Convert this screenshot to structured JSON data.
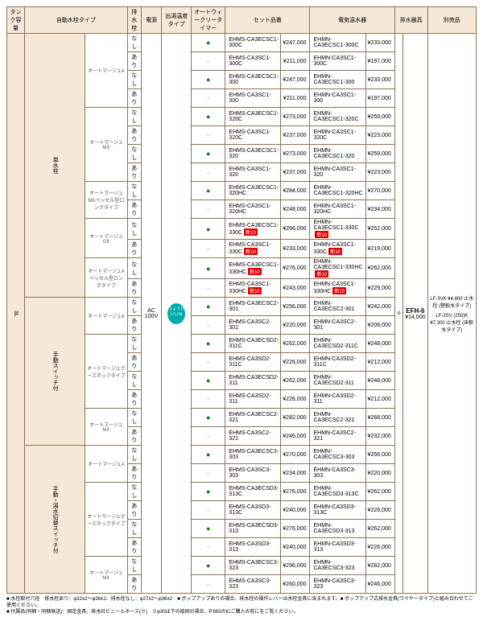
{
  "headers": {
    "c0": "タンク容量",
    "c1": "自動水栓タイプ",
    "c2": "排水栓",
    "c3": "電源",
    "c4": "出湯温度タイプ",
    "c5": "オートウィークリータイマー",
    "c6": "セット品番",
    "c7": "電気温水器",
    "c8": "排水器具",
    "c9": "別売品"
  },
  "left": {
    "cap": "3L",
    "ac": "AC\n100V",
    "chip": "ちょうどいいね",
    "g1": "単水栓",
    "g2": "手動スイッチ付",
    "g3": "手動・湯水切替スイッチ付",
    "t1": "オートマージュA",
    "t2": "オートマージュMX",
    "t3": "オートマージュMXベッセル型ロングタイプ",
    "t4": "オートマージュGX",
    "t5": "オートマージュAベッセル型ロングタイプ",
    "t6": "オートマージュA",
    "t7": "オートマージュグースネックタイプ",
    "t8": "オートマージュMX",
    "t9": "オートマージュA",
    "t10": "オートマージュグースネックタイプ",
    "t11": "オートマージュMX",
    "nashi": "なし",
    "ari": "あり"
  },
  "rows": [
    {
      "s": "EHMS-CA3ECSC1-300C",
      "sp": "¥247,000",
      "e": "EHMN-CA3ECSC1-300C",
      "ep": "¥233,000"
    },
    {
      "s": "EHMS-CA3SC1-300C",
      "sp": "¥211,000",
      "e": "EHMN-CA3SC1-300C",
      "ep": "¥197,000"
    },
    {
      "s": "EHMS-CA3ECSC1-300",
      "sp": "¥247,000",
      "e": "EHMN-CA3ECSC1-300",
      "ep": "¥233,000"
    },
    {
      "s": "EHMS-CA3SC1-300",
      "sp": "¥211,000",
      "e": "EHMN-CA3SC1-300",
      "ep": "¥197,000"
    },
    {
      "s": "EHMS-CA3ECSC1-320C",
      "sp": "¥273,000",
      "e": "EHMN-CA3ECSC1-320C",
      "ep": "¥259,000"
    },
    {
      "s": "EHMS-CA3SC1-320C",
      "sp": "¥237,000",
      "e": "EHMN-CA3SC1-320C",
      "ep": "¥223,000"
    },
    {
      "s": "EHMS-CA3ECSC1-320",
      "sp": "¥273,000",
      "e": "EHMN-CA3ECSC1-320",
      "ep": "¥259,000"
    },
    {
      "s": "EHMS-CA3SC1-320",
      "sp": "¥237,000",
      "e": "EHMN-CA3SC1-320",
      "ep": "¥223,000"
    },
    {
      "s": "EHMS-CA3ECSC1-320HC",
      "sp": "¥284,000",
      "e": "EHMN-CA3ECSC1-320HC",
      "ep": "¥270,000"
    },
    {
      "s": "EHMS-CA3SC1-320HC",
      "sp": "¥248,000",
      "e": "EHMN-CA3SC1-320HC",
      "ep": "¥234,000"
    },
    {
      "s": "EHMS-CA3ECSC1-330C",
      "sp": "¥266,000",
      "e": "EHMN-CA3ECSC1-330C",
      "ep": "¥252,000",
      "b": "新10"
    },
    {
      "s": "EHMS-CA3SC1-330C",
      "sp": "¥233,000",
      "e": "EHMN-CA3SC1-330C",
      "ep": "¥219,000",
      "b": "新10"
    },
    {
      "s": "EHMS-CA3ECSC1-330HC",
      "sp": "¥276,000",
      "e": "EHMN-CA3ECSC1-330HC",
      "ep": "¥262,000",
      "b": "新10"
    },
    {
      "s": "EHMS-CA3SC1-330HC",
      "sp": "¥243,000",
      "e": "EHMN-CA3SC1-330HC",
      "ep": "¥229,000",
      "b": "新10"
    },
    {
      "s": "EHMS-CA3ECSC2-301",
      "sp": "¥256,000",
      "e": "EHMN-CA3ECSC2-301",
      "ep": "¥242,000"
    },
    {
      "s": "EHMS-CA3SC2-301",
      "sp": "¥220,000",
      "e": "EHMN-CA3SC2-301",
      "ep": "¥206,000"
    },
    {
      "s": "EHMS-CA3ECSD2-311C",
      "sp": "¥262,000",
      "e": "EHMN-CA3ECSD2-311C",
      "ep": "¥248,000"
    },
    {
      "s": "EHMS-CA3SD2-311C",
      "sp": "¥226,000",
      "e": "EHMN-CA3SD2-311C",
      "ep": "¥212,000"
    },
    {
      "s": "EHMS-CA3ECSD2-311",
      "sp": "¥262,000",
      "e": "EHMN-CA3ECSD2-311",
      "ep": "¥248,000"
    },
    {
      "s": "EHMS-CA3SD2-311",
      "sp": "¥226,000",
      "e": "EHMN-CA3SD2-311",
      "ep": "¥212,000"
    },
    {
      "s": "EHMS-CA3ECSC2-321",
      "sp": "¥282,000",
      "e": "EHMN-CA3ECSC2-321",
      "ep": "¥268,000"
    },
    {
      "s": "EHMS-CA3SC2-321",
      "sp": "¥246,000",
      "e": "EHMN-CA3SC2-321",
      "ep": "¥232,000"
    },
    {
      "s": "EHMS-CA3ECSC3-303",
      "sp": "¥270,000",
      "e": "EHMN-CA3ECSC3-303",
      "ep": "¥256,000"
    },
    {
      "s": "EHMS-CA3SC3-303",
      "sp": "¥234,000",
      "e": "EHMN-CA3SC3-303",
      "ep": "¥220,000"
    },
    {
      "s": "EHMS-CA3ECSD3-313C",
      "sp": "¥276,000",
      "e": "EHMN-CA3ECSD3-313C",
      "ep": "¥262,000"
    },
    {
      "s": "EHMS-CA3SD3-313C",
      "sp": "¥240,000",
      "e": "EHMN-CA3SD3-313C",
      "ep": "¥226,000"
    },
    {
      "s": "EHMS-CA3ECSD3-313",
      "sp": "¥276,000",
      "e": "EHMN-CA3ECSD3-313",
      "ep": "¥262,000"
    },
    {
      "s": "EHMS-CA3SD3-313",
      "sp": "¥240,000",
      "e": "EHMN-CA3SD3-313",
      "ep": "¥226,000"
    },
    {
      "s": "EHMS-CA3ECSC3-323",
      "sp": "¥296,000",
      "e": "EHMN-CA3ECSC3-323",
      "ep": "¥282,000"
    },
    {
      "s": "EHMS-CA3SC3-323",
      "sp": "¥260,000",
      "e": "EHMN-CA3SC3-323",
      "ep": "¥246,000"
    }
  ],
  "drain": [
    "なし",
    "あり",
    "なし",
    "あり",
    "なし",
    "あり",
    "なし",
    "あり",
    "なし",
    "あり",
    "なし",
    "あり",
    "なし",
    "あり",
    "なし",
    "あり",
    "なし",
    "あり",
    "なし",
    "あり",
    "なし",
    "あり",
    "なし",
    "あり",
    "なし",
    "あり",
    "なし",
    "あり",
    "なし",
    "あり"
  ],
  "timer": [
    1,
    0,
    1,
    0,
    1,
    0,
    1,
    0,
    1,
    0,
    1,
    0,
    1,
    0,
    1,
    0,
    1,
    0,
    1,
    0,
    1,
    0,
    1,
    0,
    1,
    0,
    1,
    0,
    1,
    0
  ],
  "efh": {
    "name": "EFH-6",
    "price": "¥14,000"
  },
  "sold": {
    "a": "LF-3VK\n¥4,800\n止水栓\n(壁軟水タイプ)",
    "b": "LF-3SV\n(255)K\n¥7,300\n止水栓\n(床軟水タイプ)"
  },
  "foot": {
    "l1": "■ 水栓取付穴径　排水栓あり：φ32±2～φ36±2、排水栓なし：φ27±2～φ36±2　■ ポップアップありの場合、排水栓の操作レバーは水栓金具に含まれます。■ ポップアップ式排水金具(ワイヤータイプ)と組み合わせてご使用ください。",
    "l2": "■ 付属品(同梱・同梱発送)：固定金具、排水吐ビニールホース(※)　※φ30は下の接続の場合、P.683のICご購入の前にをご覧ください。"
  }
}
